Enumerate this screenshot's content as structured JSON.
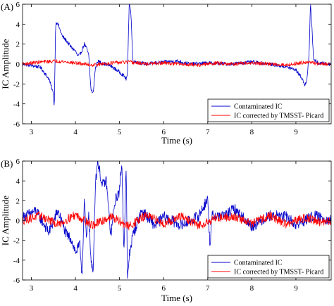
{
  "figure": {
    "panels": [
      {
        "label": "(A)",
        "xlabel": "Time (s)",
        "ylabel": "IC Amplitude",
        "legend": [
          "Contaminated IC",
          "IC corrected by TMSST- Picard"
        ]
      },
      {
        "label": "(B)",
        "xlabel": "Time (s)",
        "ylabel": "IC Amplitude",
        "legend": [
          "Contaminated IC",
          "IC corrected by TMSST- Picard"
        ]
      }
    ]
  },
  "chart_data": [
    {
      "type": "line",
      "title": "",
      "xlabel": "Time (s)",
      "ylabel": "IC Amplitude",
      "xlim": [
        2.8,
        9.8
      ],
      "ylim": [
        -6,
        6
      ],
      "xticks": [
        3,
        4,
        5,
        6,
        7,
        8,
        9
      ],
      "yticks": [
        -6,
        -4,
        -2,
        0,
        2,
        4,
        6
      ],
      "legend_position": "bottom-right",
      "grid": false,
      "series": [
        {
          "name": "Contaminated IC",
          "color": "#0000cc",
          "x": [
            2.8,
            3.2,
            3.4,
            3.5,
            3.52,
            3.55,
            3.58,
            3.62,
            3.7,
            3.8,
            3.9,
            4.0,
            4.05,
            4.1,
            4.15,
            4.2,
            4.25,
            4.3,
            4.35,
            4.4,
            4.45,
            4.5,
            4.6,
            4.8,
            5.0,
            5.1,
            5.15,
            5.18,
            5.22,
            5.26,
            5.3,
            5.4,
            5.6,
            6.0,
            6.3,
            6.4,
            6.6,
            7.0,
            7.5,
            8.0,
            8.4,
            8.8,
            9.0,
            9.15,
            9.2,
            9.25,
            9.3,
            9.33,
            9.36,
            9.4,
            9.45,
            9.5,
            9.8
          ],
          "values": [
            0.0,
            -0.3,
            -1.5,
            -3.0,
            -4.5,
            4.0,
            4.2,
            3.8,
            2.8,
            2.3,
            1.7,
            1.3,
            0.8,
            0.9,
            1.4,
            2.0,
            1.6,
            0.9,
            -2.5,
            -3.0,
            -0.5,
            0.3,
            0.1,
            -0.2,
            -0.8,
            -1.2,
            -1.5,
            -1.0,
            6.3,
            5.0,
            0.3,
            0.2,
            0.0,
            0.2,
            0.3,
            0.2,
            0.0,
            0.1,
            0.0,
            0.2,
            0.0,
            -0.3,
            -0.6,
            -1.5,
            -2.2,
            -1.5,
            1.0,
            6.0,
            4.0,
            0.5,
            0.3,
            0.1,
            0.0
          ]
        },
        {
          "name": "IC corrected by TMSST- Picard",
          "color": "#ff0000",
          "x": [
            2.8,
            3.2,
            3.6,
            4.0,
            4.4,
            4.8,
            5.2,
            5.6,
            6.0,
            6.4,
            6.8,
            7.2,
            7.6,
            8.0,
            8.4,
            8.8,
            9.2,
            9.6,
            9.8
          ],
          "values": [
            0.0,
            0.2,
            0.3,
            0.1,
            -0.1,
            0.1,
            0.2,
            0.0,
            0.1,
            0.0,
            -0.1,
            0.1,
            0.0,
            0.1,
            0.0,
            -0.1,
            0.2,
            0.0,
            0.0
          ]
        }
      ]
    },
    {
      "type": "line",
      "title": "",
      "xlabel": "Time (s)",
      "ylabel": "IC Amplitude",
      "xlim": [
        2.8,
        9.8
      ],
      "ylim": [
        -6,
        6
      ],
      "xticks": [
        3,
        4,
        5,
        6,
        7,
        8,
        9
      ],
      "yticks": [
        -6,
        -4,
        -2,
        0,
        2,
        4,
        6
      ],
      "legend_position": "bottom-right",
      "grid": false,
      "series": [
        {
          "name": "Contaminated IC",
          "color": "#0000cc",
          "x": [
            2.8,
            3.1,
            3.4,
            3.6,
            3.8,
            3.9,
            4.0,
            4.1,
            4.15,
            4.2,
            4.25,
            4.3,
            4.35,
            4.4,
            4.45,
            4.5,
            4.55,
            4.6,
            4.7,
            4.8,
            4.9,
            5.0,
            5.05,
            5.1,
            5.15,
            5.18,
            5.22,
            5.3,
            5.5,
            5.8,
            6.0,
            6.4,
            6.8,
            7.0,
            7.05,
            7.1,
            7.4,
            7.6,
            8.0,
            8.4,
            8.8,
            9.0,
            9.4,
            9.8
          ],
          "values": [
            0.3,
            1.0,
            -1.2,
            1.0,
            -1.5,
            -1.8,
            -3.2,
            -2.5,
            -5.5,
            2.0,
            -2.0,
            1.0,
            -4.0,
            -5.5,
            3.5,
            6.0,
            5.0,
            3.5,
            4.0,
            -1.5,
            2.0,
            3.0,
            6.0,
            -3.0,
            5.5,
            -6.2,
            -3.5,
            -1.5,
            1.0,
            -0.5,
            0.4,
            -0.5,
            0.5,
            2.2,
            -2.5,
            0.5,
            0.5,
            1.2,
            -0.6,
            0.5,
            0.4,
            -0.5,
            0.5,
            0.0
          ]
        },
        {
          "name": "IC corrected by TMSST- Picard",
          "color": "#ff0000",
          "x": [
            2.8,
            3.2,
            3.6,
            4.0,
            4.4,
            4.8,
            5.2,
            5.6,
            6.0,
            6.4,
            6.8,
            7.2,
            7.6,
            8.0,
            8.4,
            8.8,
            9.2,
            9.6,
            9.8
          ],
          "values": [
            0.0,
            0.5,
            -0.4,
            0.6,
            -0.5,
            0.4,
            -0.6,
            0.5,
            -0.3,
            0.4,
            -0.5,
            0.3,
            0.4,
            -0.3,
            0.5,
            -0.4,
            0.3,
            -0.2,
            0.0
          ]
        }
      ]
    }
  ]
}
